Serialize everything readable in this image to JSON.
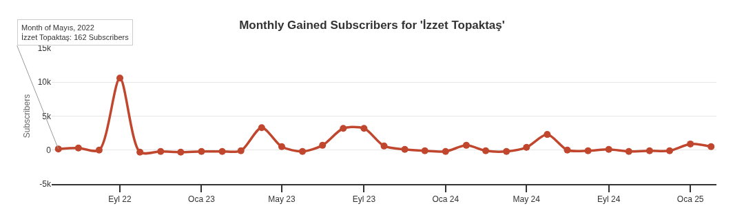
{
  "chart_data": {
    "type": "line",
    "title": "Monthly Gained Subscribers for 'İzzet Topaktaş'",
    "ylabel": "Subscribers",
    "x": [
      "2022-06-01",
      "2022-07-01",
      "2022-08-01",
      "2022-09-01",
      "2022-10-01",
      "2022-11-01",
      "2022-12-01",
      "2023-01-01",
      "2023-02-01",
      "2023-03-01",
      "2023-04-01",
      "2023-05-01",
      "2023-06-01",
      "2023-07-01",
      "2023-08-01",
      "2023-09-01",
      "2023-10-01",
      "2023-11-01",
      "2023-12-01",
      "2024-01-01",
      "2024-02-01",
      "2024-03-01",
      "2024-04-01",
      "2024-05-01",
      "2024-06-01",
      "2024-07-01",
      "2024-08-01",
      "2024-09-01",
      "2024-10-01",
      "2024-11-01",
      "2024-12-01",
      "2025-01-01",
      "2025-02-01"
    ],
    "series": [
      {
        "color": "#c0462e",
        "values": [
          162,
          300,
          0,
          10600,
          -300,
          -200,
          -300,
          -200,
          -200,
          -100,
          3300,
          500,
          -200,
          700,
          3200,
          3200,
          600,
          100,
          -100,
          -200,
          700,
          -100,
          -200,
          400,
          2300,
          0,
          -100,
          100,
          -200,
          -100,
          -100,
          900,
          500
        ]
      }
    ],
    "xlim": [
      "2022-05-22",
      "2025-02-09"
    ],
    "xticks": [
      {
        "value": "2022-09-01",
        "label": "Eyl 22"
      },
      {
        "value": "2023-01-01",
        "label": "Oca 23"
      },
      {
        "value": "2023-05-01",
        "label": "May 23"
      },
      {
        "value": "2023-09-01",
        "label": "Eyl 23"
      },
      {
        "value": "2024-01-01",
        "label": "Oca 24"
      },
      {
        "value": "2024-05-01",
        "label": "May 24"
      },
      {
        "value": "2024-09-01",
        "label": "Eyl 24"
      },
      {
        "value": "2025-01-01",
        "label": "Oca 25"
      }
    ],
    "ylim": [
      -5000,
      15000
    ],
    "yticks": [
      {
        "value": -5000,
        "label": "-5k"
      },
      {
        "value": 0,
        "label": "0"
      },
      {
        "value": 5000,
        "label": "5k"
      },
      {
        "value": 10000,
        "label": "10k"
      },
      {
        "value": 15000,
        "label": "15k"
      }
    ],
    "grid": "y",
    "marker": "circle",
    "line_style": "solid",
    "annotations": [
      {
        "text": "Month of Mayıs, 2022\nİzzet Topaktaş: 162 Subscribers",
        "x": "2022-06-01",
        "y": 162
      }
    ]
  }
}
